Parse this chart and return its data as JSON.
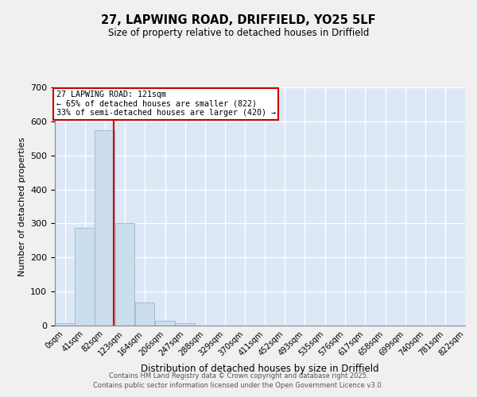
{
  "title_line1": "27, LAPWING ROAD, DRIFFIELD, YO25 5LF",
  "title_line2": "Size of property relative to detached houses in Driffield",
  "xlabel": "Distribution of detached houses by size in Driffield",
  "ylabel": "Number of detached properties",
  "bin_labels": [
    "0sqm",
    "41sqm",
    "82sqm",
    "123sqm",
    "164sqm",
    "206sqm",
    "247sqm",
    "288sqm",
    "329sqm",
    "370sqm",
    "411sqm",
    "452sqm",
    "493sqm",
    "535sqm",
    "576sqm",
    "617sqm",
    "658sqm",
    "699sqm",
    "740sqm",
    "781sqm",
    "822sqm"
  ],
  "bin_edges": [
    0,
    41,
    82,
    123,
    164,
    206,
    247,
    288,
    329,
    370,
    411,
    452,
    493,
    535,
    576,
    617,
    658,
    699,
    740,
    781,
    822
  ],
  "bar_heights": [
    8,
    287,
    575,
    302,
    68,
    15,
    8,
    0,
    0,
    0,
    0,
    0,
    0,
    0,
    0,
    0,
    0,
    0,
    0,
    0
  ],
  "bar_color": "#ccdded",
  "bar_edge_color": "#9ab8cc",
  "vline_x": 121,
  "vline_color": "#cc0000",
  "annotation_text": "27 LAPWING ROAD: 121sqm\n← 65% of detached houses are smaller (822)\n33% of semi-detached houses are larger (420) →",
  "annotation_box_color": "#ffffff",
  "annotation_box_edge": "#cc0000",
  "ylim": [
    0,
    700
  ],
  "yticks": [
    0,
    100,
    200,
    300,
    400,
    500,
    600,
    700
  ],
  "bg_color": "#dce8f5",
  "fig_bg_color": "#f0f0f0",
  "footer_line1": "Contains HM Land Registry data © Crown copyright and database right 2025.",
  "footer_line2": "Contains public sector information licensed under the Open Government Licence v3.0."
}
